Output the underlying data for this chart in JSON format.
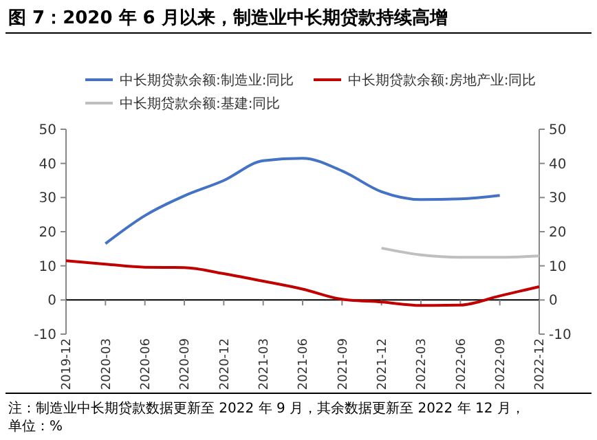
{
  "chart_data": {
    "type": "line",
    "title": "图 7：2020 年 6 月以来，制造业中长期贷款持续高增",
    "categories": [
      "2019-12",
      "2020-03",
      "2020-06",
      "2020-09",
      "2020-12",
      "2021-03",
      "2021-06",
      "2021-09",
      "2021-12",
      "2022-03",
      "2022-06",
      "2022-09",
      "2022-12"
    ],
    "series": [
      {
        "name": "中长期贷款余额:制造业:同比",
        "color": "#4472c4",
        "values": [
          null,
          16.5,
          24.7,
          30.5,
          35,
          40.8,
          41.5,
          37.8,
          31.7,
          29.4,
          29.6,
          30.6,
          null
        ]
      },
      {
        "name": "中长期贷款余额:房地产业:同比",
        "color": "#c00000",
        "values": [
          11.5,
          10.5,
          9.6,
          9.5,
          7.7,
          5.5,
          3.2,
          0.2,
          -0.6,
          -1.6,
          -1.5,
          1.2,
          3.9
        ]
      },
      {
        "name": "中长期贷款余额:基建:同比",
        "color": "#bfbfbf",
        "values": [
          null,
          null,
          null,
          null,
          null,
          null,
          null,
          null,
          15.2,
          13.2,
          12.5,
          12.5,
          12.9
        ]
      }
    ],
    "ylim": [
      -10,
      50
    ],
    "yticks": [
      -10,
      0,
      10,
      20,
      30,
      40,
      50
    ],
    "y2lim": [
      -10,
      50
    ],
    "y2ticks": [
      -10,
      0,
      10,
      20,
      30,
      40,
      50
    ],
    "ref_lines": [
      {
        "axis": "y",
        "value": 0,
        "color": "#000000"
      }
    ],
    "grid": false,
    "legend": "top",
    "marker": "none",
    "line_style": "solid",
    "annotations": [
      "注：制造业中长期贷款数据更新至 2022 年 9 月，其余数据更新至 2022 年 12 月，单位：%"
    ]
  }
}
